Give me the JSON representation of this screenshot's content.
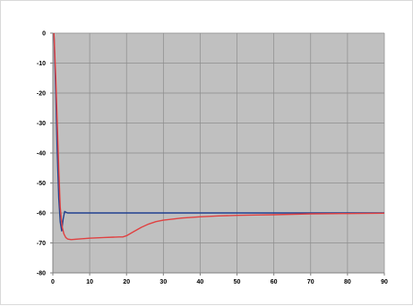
{
  "chart_data": {
    "type": "line",
    "title": "",
    "xlabel": "",
    "ylabel": "",
    "xlim": [
      0,
      90
    ],
    "ylim": [
      -80,
      0
    ],
    "x_ticks": [
      0,
      10,
      20,
      30,
      40,
      50,
      60,
      70,
      80,
      90
    ],
    "y_ticks": [
      0,
      -10,
      -20,
      -30,
      -40,
      -50,
      -60,
      -70,
      -80
    ],
    "x_tick_labels": [
      "0",
      "10",
      "20",
      "30",
      "40",
      "50",
      "60",
      "70",
      "80",
      "90"
    ],
    "y_tick_labels": [
      "0",
      "-10",
      "-20",
      "-30",
      "-40",
      "-50",
      "-60",
      "-70",
      "-80"
    ],
    "grid": true,
    "legend": "none",
    "plot_background": "#c0c0c0",
    "series": [
      {
        "color": "#1f3f8f",
        "x": [
          0.3,
          0.8,
          1.2,
          1.6,
          2.0,
          2.4,
          2.8,
          3.2,
          3.6,
          4.0,
          5.0,
          6.0,
          8.0,
          10,
          20,
          30,
          40,
          50,
          60,
          70,
          80,
          90
        ],
        "y": [
          0,
          -20,
          -40,
          -55,
          -63,
          -66,
          -62,
          -59.5,
          -59.8,
          -60,
          -60,
          -60,
          -60,
          -60,
          -60,
          -60,
          -60,
          -60,
          -60,
          -60,
          -60,
          -60
        ]
      },
      {
        "color": "#e04040",
        "x": [
          0.3,
          0.8,
          1.2,
          1.6,
          2.0,
          2.5,
          3.0,
          3.5,
          4.0,
          5.0,
          6.0,
          8.0,
          10,
          12,
          14,
          16,
          18,
          19,
          20,
          22,
          24,
          26,
          28,
          30,
          35,
          40,
          45,
          50,
          55,
          60,
          70,
          80,
          90
        ],
        "y": [
          0,
          -15,
          -30,
          -45,
          -58,
          -64.5,
          -67,
          -68.2,
          -68.7,
          -68.9,
          -68.8,
          -68.6,
          -68.4,
          -68.3,
          -68.2,
          -68.1,
          -68.0,
          -68.0,
          -67.6,
          -66.2,
          -64.8,
          -63.7,
          -62.9,
          -62.4,
          -61.7,
          -61.3,
          -61.0,
          -60.8,
          -60.7,
          -60.6,
          -60.3,
          -60.2,
          -60.1
        ]
      }
    ]
  }
}
